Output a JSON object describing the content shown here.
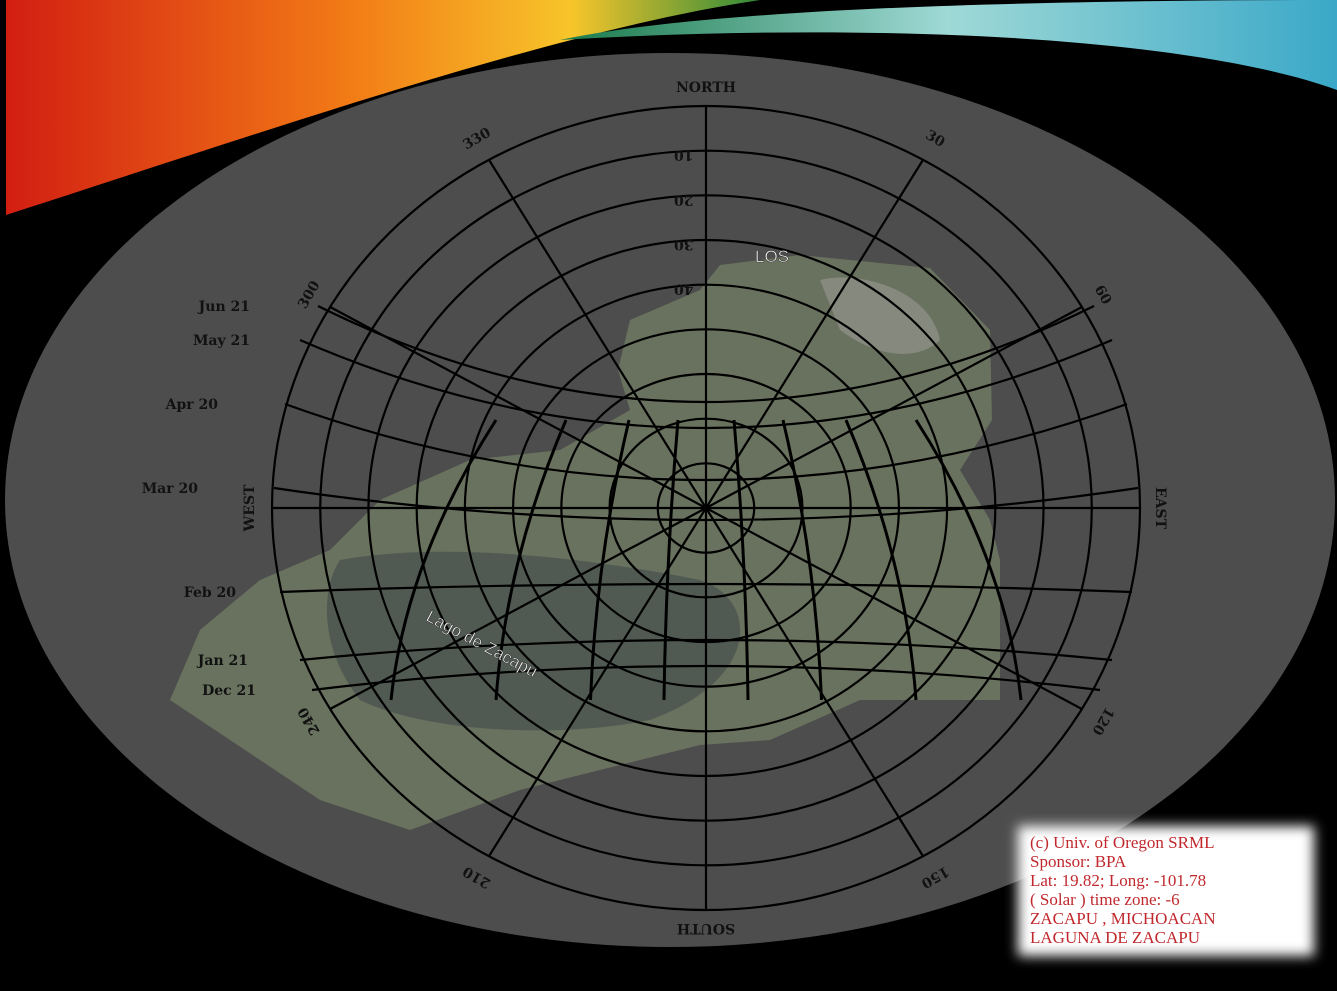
{
  "compass": {
    "north": "NORTH",
    "south": "SOUTH",
    "east": "EAST",
    "west": "WEST"
  },
  "azimuth_labels": [
    "30",
    "60",
    "120",
    "150",
    "210",
    "240",
    "300",
    "330"
  ],
  "altitude_labels": [
    "10",
    "20",
    "30",
    "40"
  ],
  "date_labels": [
    "Jun 21",
    "May 21",
    "Apr 20",
    "Mar 20",
    "Feb 20",
    "Jan 21",
    "Dec 21"
  ],
  "map_labels": {
    "town": "LOS",
    "lake": "Lago de Zacapu"
  },
  "credit": [
    "(c) Univ. of Oregon SRML",
    "Sponsor: BPA",
    "Lat: 19.82; Long: -101.78",
    "( Solar ) time zone: -6",
    "ZACAPU , MICHOACAN",
    "LAGUNA  DE ZACAPU"
  ]
}
